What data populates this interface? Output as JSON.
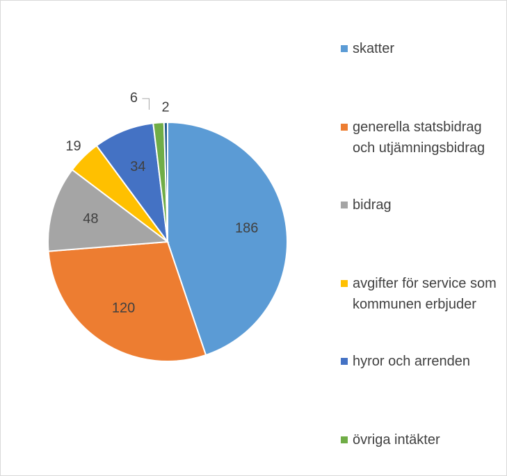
{
  "chart_data": {
    "type": "pie",
    "categories": [
      "skatter",
      "generella statsbidrag och utjämningsbidrag",
      "bidrag",
      "avgifter för service som kommunen erbjuder",
      "hyror och arrenden",
      "övriga intäkter",
      null
    ],
    "values": [
      186,
      120,
      48,
      19,
      34,
      6,
      2
    ],
    "colors": [
      "#5b9bd5",
      "#ed7d31",
      "#a5a5a5",
      "#ffc000",
      "#4472c4",
      "#70ad47",
      "#255e91"
    ],
    "legend": "right"
  }
}
